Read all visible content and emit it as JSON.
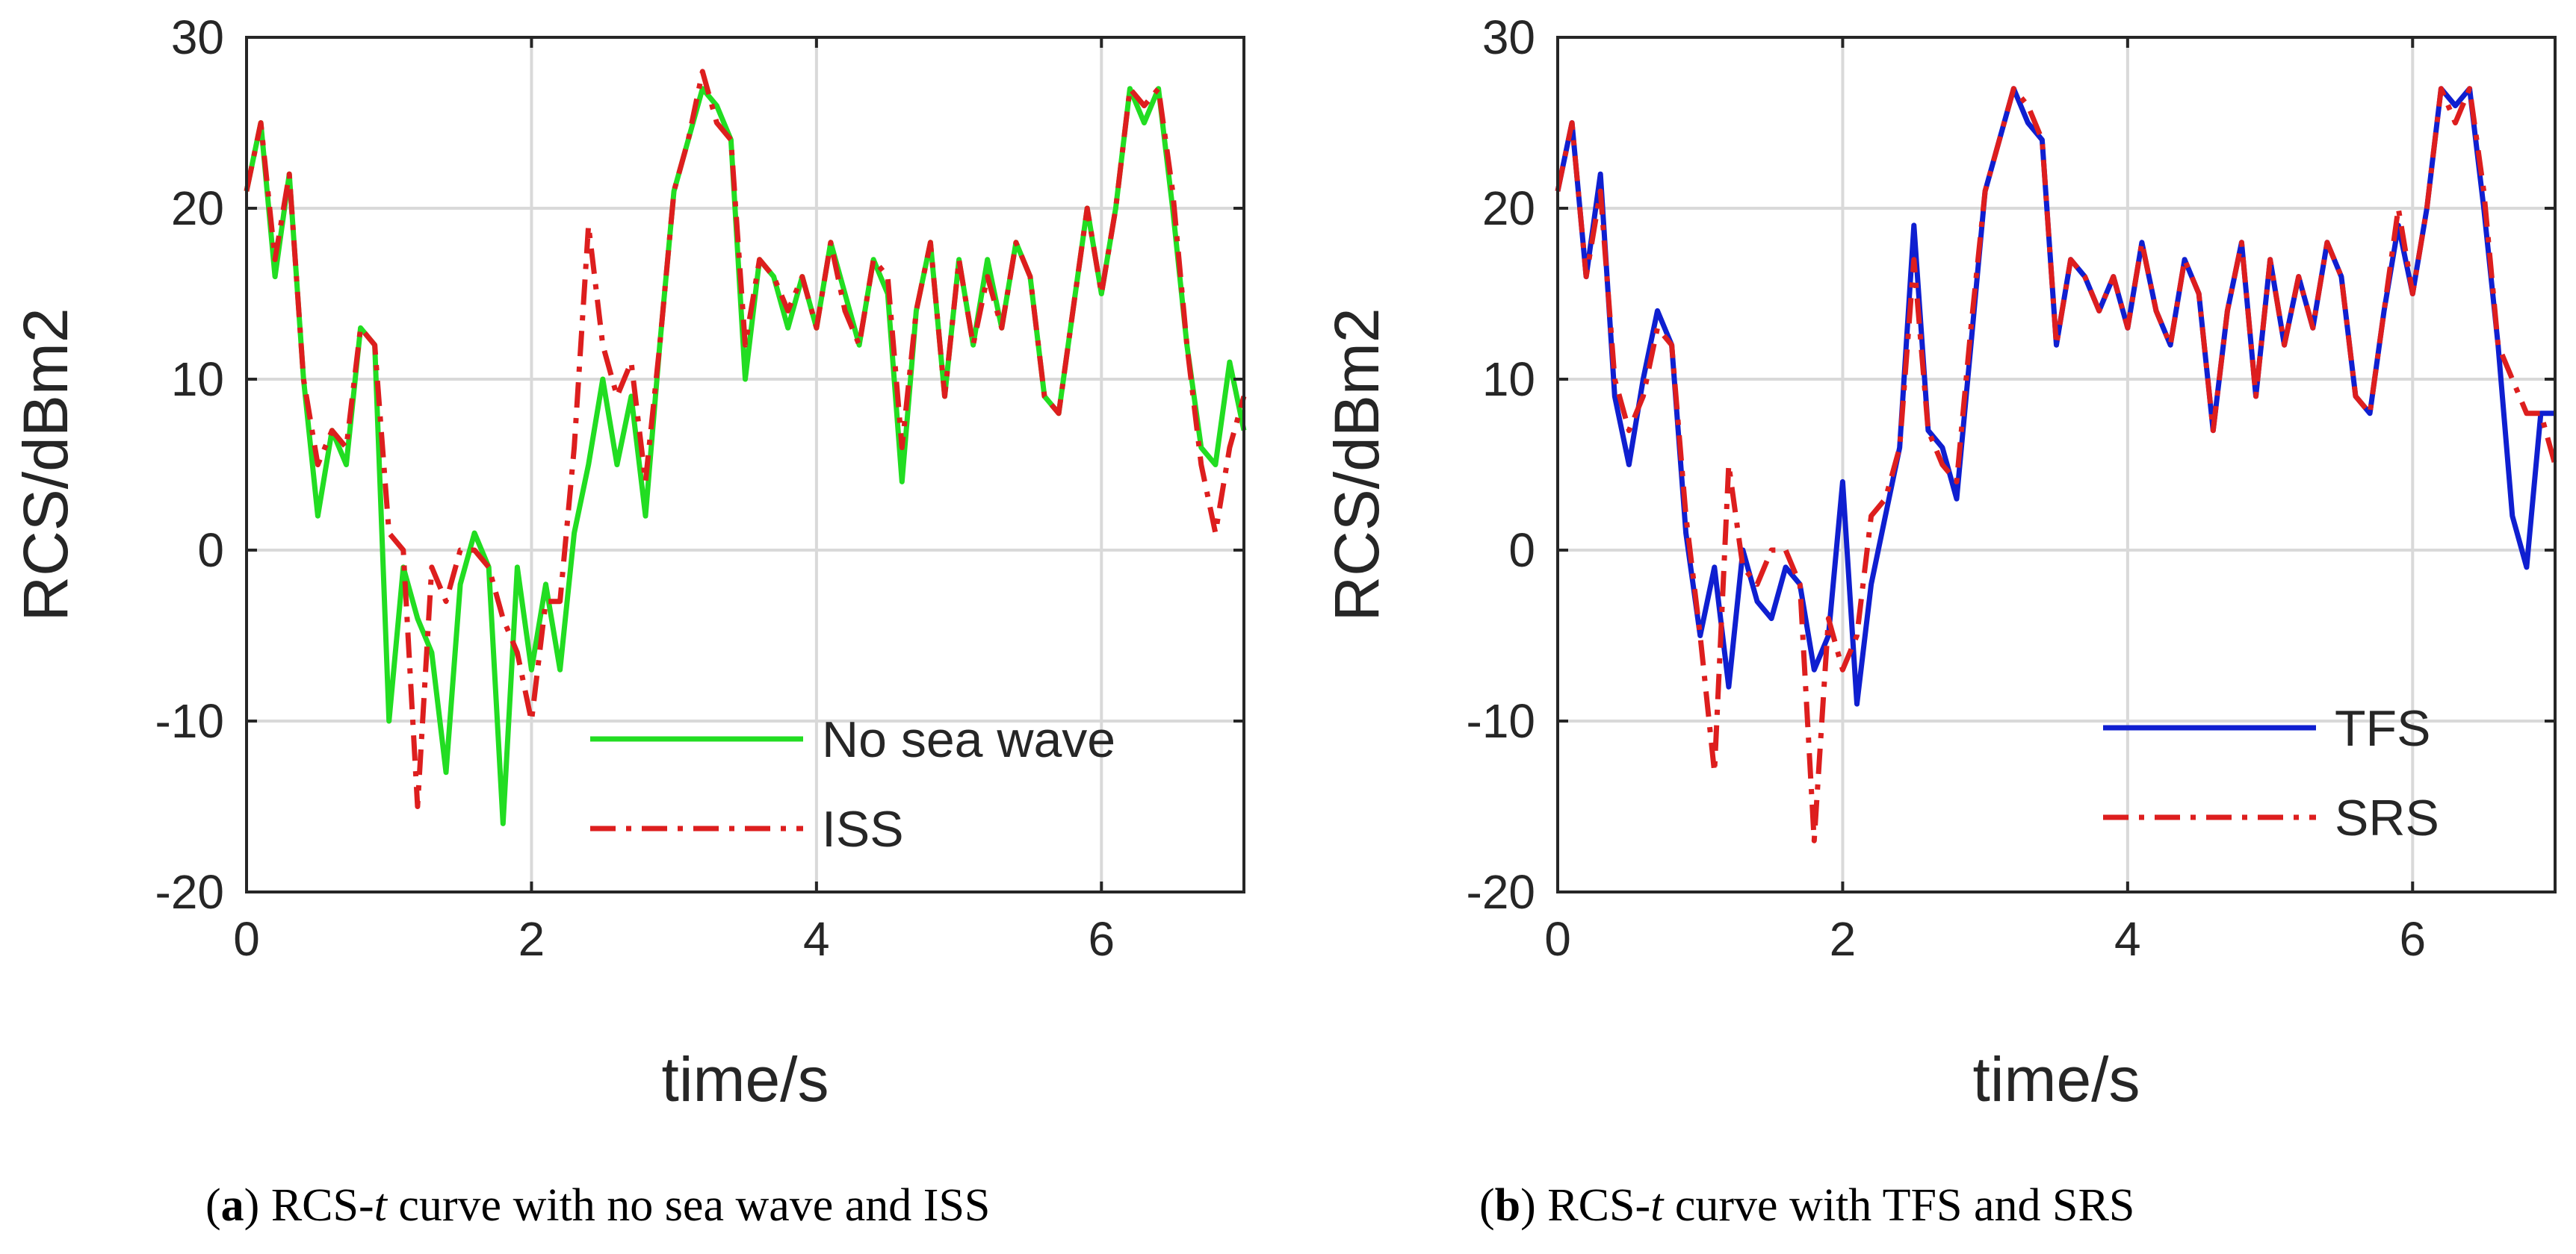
{
  "chart_data": [
    {
      "type": "line",
      "panel": "a",
      "caption": {
        "letter": "a",
        "text1": " RCS-",
        "italic": "t",
        "text2": " curve with no sea wave and ISS"
      },
      "xlabel": "time/s",
      "ylabel": "RCS/dBm2",
      "xlim": [
        0,
        7
      ],
      "ylim": [
        -20,
        30
      ],
      "xticks": [
        0,
        2,
        4,
        6
      ],
      "yticks": [
        -20,
        -10,
        0,
        10,
        20,
        30
      ],
      "grid": true,
      "legend_position": "bottom-right",
      "x": [
        0,
        0.1,
        0.2,
        0.3,
        0.4,
        0.5,
        0.6,
        0.7,
        0.8,
        0.9,
        1.0,
        1.1,
        1.2,
        1.3,
        1.4,
        1.5,
        1.6,
        1.7,
        1.8,
        1.9,
        2.0,
        2.1,
        2.2,
        2.3,
        2.4,
        2.5,
        2.6,
        2.7,
        2.8,
        2.9,
        3.0,
        3.1,
        3.2,
        3.3,
        3.4,
        3.5,
        3.6,
        3.7,
        3.8,
        3.9,
        4.0,
        4.1,
        4.2,
        4.3,
        4.4,
        4.5,
        4.6,
        4.7,
        4.8,
        4.9,
        5.0,
        5.1,
        5.2,
        5.3,
        5.4,
        5.5,
        5.6,
        5.7,
        5.8,
        5.9,
        6.0,
        6.1,
        6.2,
        6.3,
        6.4,
        6.5,
        6.6,
        6.7,
        6.8,
        6.9,
        7.0
      ],
      "series": [
        {
          "name": "No sea wave",
          "color": "#22dd22",
          "style": "solid",
          "values": [
            21,
            25,
            16,
            22,
            10,
            2,
            7,
            5,
            13,
            12,
            -10,
            -1,
            -4,
            -6,
            -13,
            -2,
            1,
            -1,
            -16,
            -1,
            -7,
            -2,
            -7,
            1,
            5,
            10,
            5,
            9,
            2,
            12,
            21,
            24,
            27,
            26,
            24,
            10,
            17,
            16,
            13,
            16,
            13,
            18,
            15,
            12,
            17,
            15,
            4,
            14,
            18,
            9,
            17,
            12,
            17,
            13,
            18,
            16,
            9,
            8,
            14,
            20,
            15,
            20,
            27,
            25,
            27,
            20,
            12,
            6,
            5,
            11,
            7
          ]
        },
        {
          "name": "ISS",
          "color": "#dd1e1e",
          "style": "dashdot",
          "values": [
            21,
            25,
            17,
            22,
            10,
            5,
            7,
            6,
            13,
            12,
            1,
            0,
            -15,
            -1,
            -3,
            0,
            0,
            -1,
            -4,
            -6,
            -10,
            -3,
            -3,
            6,
            19,
            12,
            9,
            11,
            4,
            12,
            21,
            24,
            28,
            25,
            24,
            12,
            17,
            16,
            14,
            16,
            13,
            18,
            14,
            12,
            17,
            16,
            6,
            14,
            18,
            9,
            17,
            12,
            16,
            13,
            18,
            16,
            9,
            8,
            14,
            20,
            15,
            20,
            27,
            26,
            27,
            21,
            12,
            5,
            1,
            6,
            9
          ]
        }
      ]
    },
    {
      "type": "line",
      "panel": "b",
      "caption": {
        "letter": "b",
        "text1": " RCS-",
        "italic": "t",
        "text2": " curve with TFS and SRS"
      },
      "xlabel": "time/s",
      "ylabel": "RCS/dBm2",
      "xlim": [
        0,
        7
      ],
      "ylim": [
        -20,
        30
      ],
      "xticks": [
        0,
        2,
        4,
        6
      ],
      "yticks": [
        -20,
        -10,
        0,
        10,
        20,
        30
      ],
      "grid": true,
      "legend_position": "bottom-right",
      "x": [
        0,
        0.1,
        0.2,
        0.3,
        0.4,
        0.5,
        0.6,
        0.7,
        0.8,
        0.9,
        1.0,
        1.1,
        1.2,
        1.3,
        1.4,
        1.5,
        1.6,
        1.7,
        1.8,
        1.9,
        2.0,
        2.1,
        2.2,
        2.3,
        2.4,
        2.5,
        2.6,
        2.7,
        2.8,
        2.9,
        3.0,
        3.1,
        3.2,
        3.3,
        3.4,
        3.5,
        3.6,
        3.7,
        3.8,
        3.9,
        4.0,
        4.1,
        4.2,
        4.3,
        4.4,
        4.5,
        4.6,
        4.7,
        4.8,
        4.9,
        5.0,
        5.1,
        5.2,
        5.3,
        5.4,
        5.5,
        5.6,
        5.7,
        5.8,
        5.9,
        6.0,
        6.1,
        6.2,
        6.3,
        6.4,
        6.5,
        6.6,
        6.7,
        6.8,
        6.9,
        7.0
      ],
      "series": [
        {
          "name": "TFS",
          "color": "#0f1fd0",
          "style": "solid",
          "values": [
            21,
            25,
            16,
            22,
            9,
            5,
            10,
            14,
            12,
            1,
            -5,
            -1,
            -8,
            0,
            -3,
            -4,
            -1,
            -2,
            -7,
            -5,
            4,
            -9,
            -2,
            2,
            6,
            19,
            7,
            6,
            3,
            12,
            21,
            24,
            27,
            25,
            24,
            12,
            17,
            16,
            14,
            16,
            13,
            18,
            14,
            12,
            17,
            15,
            7,
            14,
            18,
            9,
            17,
            12,
            16,
            13,
            18,
            16,
            9,
            8,
            14,
            19,
            15,
            20,
            27,
            26,
            27,
            20,
            12,
            2,
            -1,
            8,
            8
          ]
        },
        {
          "name": "SRS",
          "color": "#dd1e1e",
          "style": "dashdot",
          "values": [
            21,
            25,
            16,
            21,
            10,
            7,
            9,
            13,
            12,
            2,
            -5,
            -13,
            5,
            -1,
            -2,
            0,
            0,
            -2,
            -17,
            -4,
            -7,
            -5,
            2,
            3,
            6,
            17,
            7,
            5,
            4,
            13,
            21,
            24,
            27,
            26,
            24,
            12,
            17,
            16,
            14,
            16,
            13,
            18,
            14,
            12,
            17,
            15,
            7,
            14,
            18,
            9,
            17,
            12,
            16,
            13,
            18,
            16,
            9,
            8,
            14,
            20,
            15,
            20,
            27,
            25,
            27,
            21,
            12,
            10,
            8,
            8,
            5
          ]
        }
      ]
    }
  ]
}
